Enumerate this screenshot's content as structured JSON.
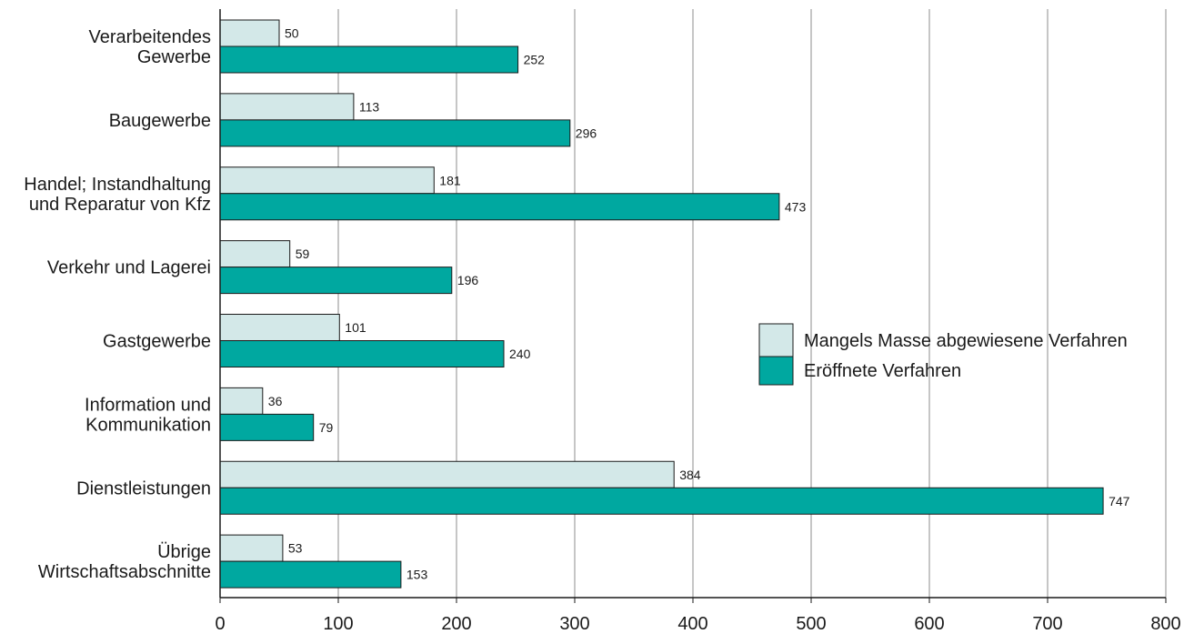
{
  "chart_data": {
    "type": "bar",
    "orientation": "horizontal",
    "categories": [
      [
        "Verarbeitendes",
        "Gewerbe"
      ],
      [
        "Baugewerbe"
      ],
      [
        "Handel; Instandhaltung",
        "und Reparatur von Kfz"
      ],
      [
        "Verkehr und Lagerei"
      ],
      [
        "Gastgewerbe"
      ],
      [
        "Information und",
        "Kommunikation"
      ],
      [
        "Dienstleistungen"
      ],
      [
        "Übrige",
        "Wirtschaftsabschnitte"
      ]
    ],
    "series": [
      {
        "name": "Mangels Masse abgewiesene Verfahren",
        "color": "#d3e8e8",
        "values": [
          50,
          113,
          181,
          59,
          101,
          36,
          384,
          53
        ]
      },
      {
        "name": "Eröffnete Verfahren",
        "color": "#00a8a0",
        "values": [
          252,
          296,
          473,
          196,
          240,
          79,
          747,
          153
        ]
      }
    ],
    "xlim": [
      0,
      800
    ],
    "xticks": [
      0,
      100,
      200,
      300,
      400,
      500,
      600,
      700,
      800
    ],
    "grid": true,
    "legend_position": "right-middle"
  }
}
